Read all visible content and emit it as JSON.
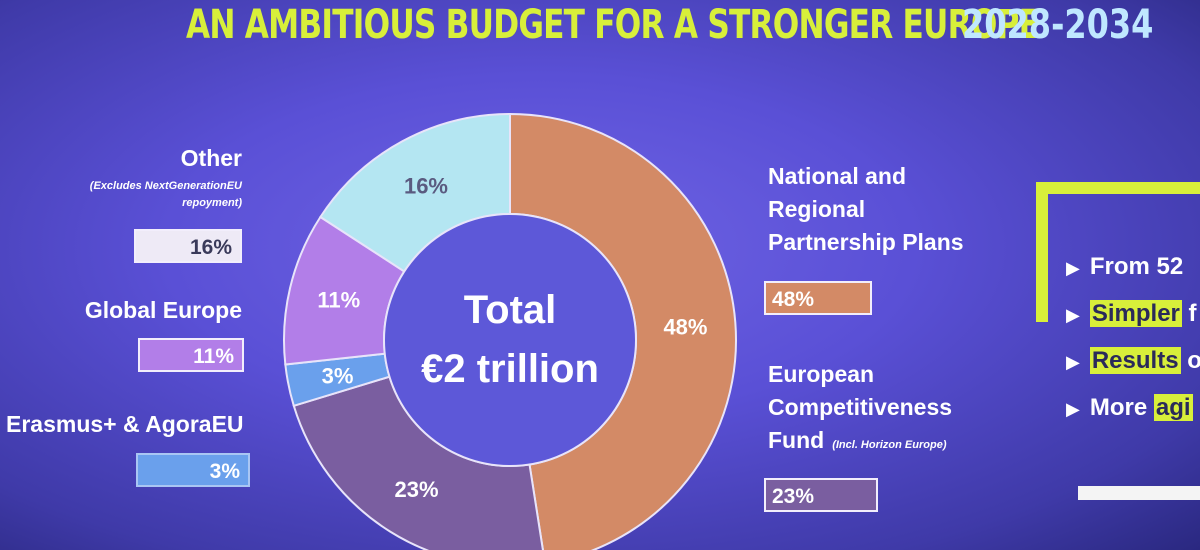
{
  "header": {
    "title": "AN AMBITIOUS BUDGET FOR A STRONGER EUROPE",
    "years": "2028-2034"
  },
  "center": {
    "line1": "Total",
    "line2": "€2 trillion"
  },
  "legend": {
    "other": {
      "label": "Other",
      "note_line1": "(Excludes NextGenerationEU",
      "note_line2": "repoyment)",
      "value": "16%"
    },
    "global_europe": {
      "label": "Global Europe",
      "value": "11%"
    },
    "erasmus": {
      "label": "Erasmus+ & AgoraEU",
      "value": "3%"
    },
    "national": {
      "line1": "National and",
      "line2": "Regional",
      "line3": "Partnership Plans",
      "value": "48%"
    },
    "competitiveness": {
      "line1": "European",
      "line2": "Competitiveness",
      "line3": "Fund",
      "note": "(Incl. Horizon Europe)",
      "value": "23%"
    }
  },
  "bullets": [
    {
      "arrow": "▶",
      "pre": "From 52",
      "hl": "",
      "post": ""
    },
    {
      "arrow": "▶",
      "pre": "",
      "hl": "Simpler",
      "post": " f"
    },
    {
      "arrow": "▶",
      "pre": "",
      "hl": "Results",
      "post": " o"
    },
    {
      "arrow": "▶",
      "pre": "More ",
      "hl": "agi",
      "post": ""
    }
  ],
  "chart_data": {
    "type": "pie",
    "title": "AN AMBITIOUS BUDGET FOR A STRONGER EUROPE",
    "center_text": "Total €2 trillion",
    "categories": [
      "National and Regional Partnership Plans",
      "European Competitiveness Fund",
      "Erasmus+ & AgoraEU",
      "Global Europe",
      "Other"
    ],
    "values": [
      48,
      23,
      3,
      11,
      16
    ],
    "labels": [
      "48%",
      "23%",
      "3%",
      "11%",
      "16%"
    ],
    "colors": [
      "#d38a66",
      "#7a5ea0",
      "#6aa0ec",
      "#b27ee8",
      "#b4e6f2"
    ],
    "label_colors": [
      "#ffffff",
      "#ffffff",
      "#ffffff",
      "#ffffff",
      "#5a5a80"
    ],
    "hole_color": "#5d58d8"
  }
}
